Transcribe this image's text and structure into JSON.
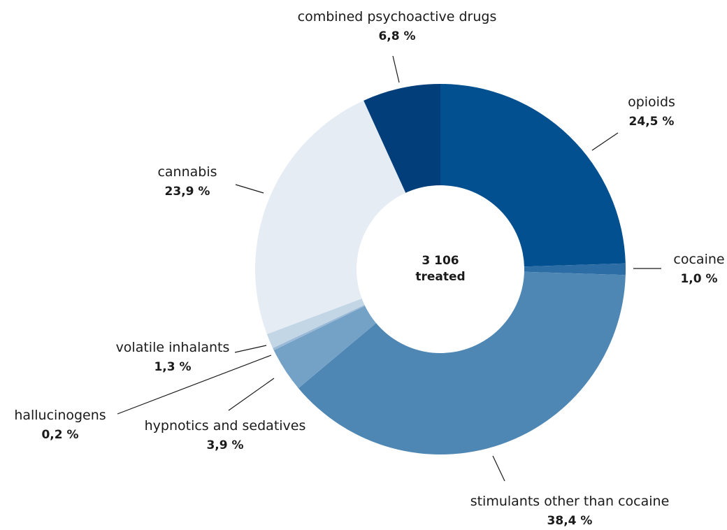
{
  "chart_data": {
    "type": "pie",
    "donut": true,
    "center_text": [
      "3 106",
      "treated"
    ],
    "slices": [
      {
        "name": "opioids",
        "value": 24.5,
        "value_label": "24,5 %",
        "color": "#02508f"
      },
      {
        "name": "cocaine",
        "value": 1.0,
        "value_label": "1,0  %",
        "color": "#2c6da6"
      },
      {
        "name": "stimulants other than cocaine",
        "value": 38.4,
        "value_label": "38,4 %",
        "color": "#4f87b4"
      },
      {
        "name": "hypnotics and sedatives",
        "value": 3.9,
        "value_label": "3,9 %",
        "color": "#74a2c6"
      },
      {
        "name": "hallucinogens",
        "value": 0.2,
        "value_label": "0,2 %",
        "color": "#9ab9d6"
      },
      {
        "name": "volatile inhalants",
        "value": 1.3,
        "value_label": "1,3 %",
        "color": "#c3d6e6"
      },
      {
        "name": "cannabis",
        "value": 23.9,
        "value_label": "23,9 %",
        "color": "#e5ecf3"
      },
      {
        "name": "combined psychoactive drugs",
        "value": 6.8,
        "value_label": "6,8 %",
        "color": "#023f7a"
      }
    ]
  }
}
